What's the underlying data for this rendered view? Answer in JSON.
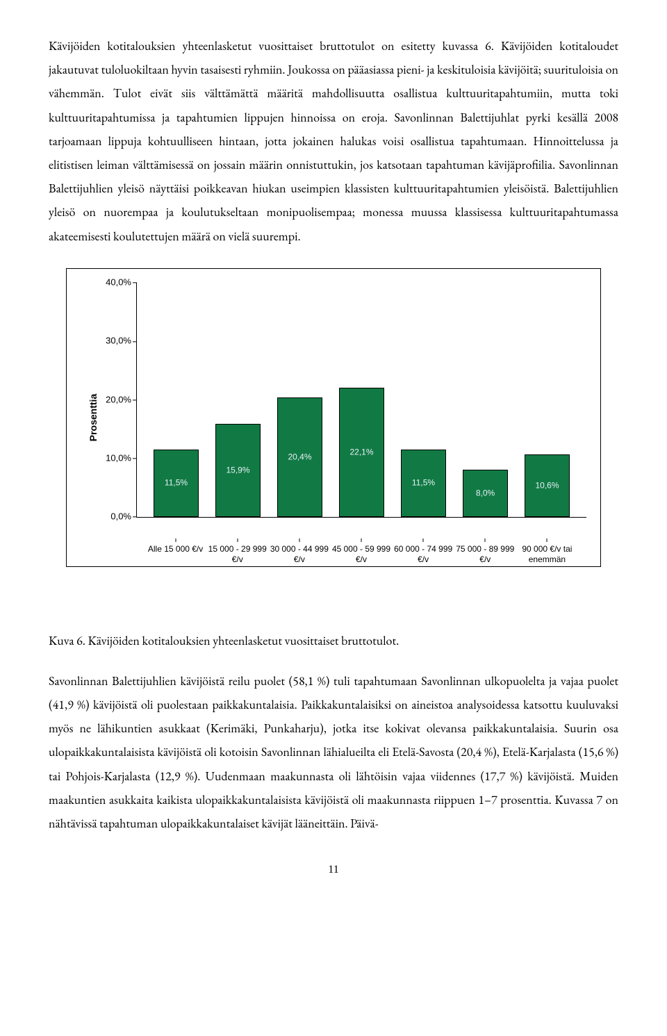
{
  "paragraph1": "Kävijöiden kotitalouksien yhteenlasketut vuosittaiset bruttotulot on esitetty kuvassa 6. Kävijöiden kotitaloudet jakautuvat tuloluokiltaan hyvin tasaisesti ryhmiin. Joukossa on pääasiassa pieni- ja keskituloisia kävijöitä; suurituloisia on vähemmän. Tulot eivät siis välttämättä määritä mahdollisuutta osallistua kulttuuritapahtumiin, mutta toki kulttuuritapahtumissa ja tapahtumien lippujen hinnoissa on eroja. Savonlinnan Balettijuhlat pyrki kesällä 2008 tarjoamaan lippuja kohtuulliseen hintaan, jotta jokainen halukas voisi osallistua tapahtumaan. Hinnoittelussa ja elitistisen leiman välttämisessä on jossain määrin onnistuttukin, jos katsotaan tapahtuman kävijäprofiilia. Savonlinnan Balettijuhlien yleisö näyttäisi poikkeavan hiukan useimpien klassisten kulttuuritapahtumien yleisöistä. Balettijuhlien yleisö on nuorempaa ja koulutukseltaan monipuolisempaa; monessa muussa klassisessa kulttuuritapahtumassa akateemisesti koulutettujen määrä on vielä suurempi.",
  "chart": {
    "type": "bar",
    "ylabel": "Prosenttia",
    "ylim_max": 40,
    "ytick_step": 10,
    "background_color": "#ffffff",
    "bar_color": "#117a44",
    "bar_border": "#000000",
    "value_label_color": "#e8f0f8",
    "axis_color": "#000000",
    "tick_fontsize": 13,
    "bar_fontsize": 12,
    "xlabel_fontsize": 12,
    "categories": [
      "Alle 15 000 €/v",
      "15 000 - 29 999 €/v",
      "30 000 - 44 999 €/v",
      "45 000 - 59 999 €/v",
      "60 000 - 74 999 €/v",
      "75 000 - 89 999 €/v",
      "90 000 €/v tai enemmän"
    ],
    "values": [
      11.5,
      15.9,
      20.4,
      22.1,
      11.5,
      8.0,
      10.6
    ],
    "value_labels": [
      "11,5%",
      "15,9%",
      "20,4%",
      "22,1%",
      "11,5%",
      "8,0%",
      "10,6%"
    ],
    "ytick_labels": [
      "0,0%",
      "10,0%",
      "20,0%",
      "30,0%",
      "40,0%"
    ]
  },
  "caption": "Kuva 6. Kävijöiden kotitalouksien yhteenlasketut vuosittaiset bruttotulot.",
  "paragraph2": "Savonlinnan Balettijuhlien kävijöistä reilu puolet (58,1 %) tuli tapahtumaan Savonlinnan ulkopuolelta ja vajaa puolet (41,9 %) kävijöistä oli puolestaan paikkakuntalaisia. Paikkakuntalaisiksi on aineistoa analysoidessa katsottu kuuluvaksi myös ne lähikuntien asukkaat (Kerimäki, Punkaharju), jotka itse kokivat olevansa paikkakuntalaisia. Suurin osa ulopaikkakuntalaisista kävijöistä oli kotoisin Savonlinnan lähialueilta eli Etelä-Savosta (20,4 %), Etelä-Karjalasta (15,6 %) tai Pohjois-Karjalasta (12,9 %). Uudenmaan maakunnasta oli lähtöisin vajaa viidennes (17,7 %) kävijöistä. Muiden maakuntien asukkaita kaikista ulopaikkakuntalaisista kävijöistä oli maakunnasta riippuen 1–7 prosenttia. Kuvassa 7 on nähtävissä tapahtuman ulopaikkakuntalaiset kävijät lääneittäin. Päivä-",
  "page_number": "11"
}
